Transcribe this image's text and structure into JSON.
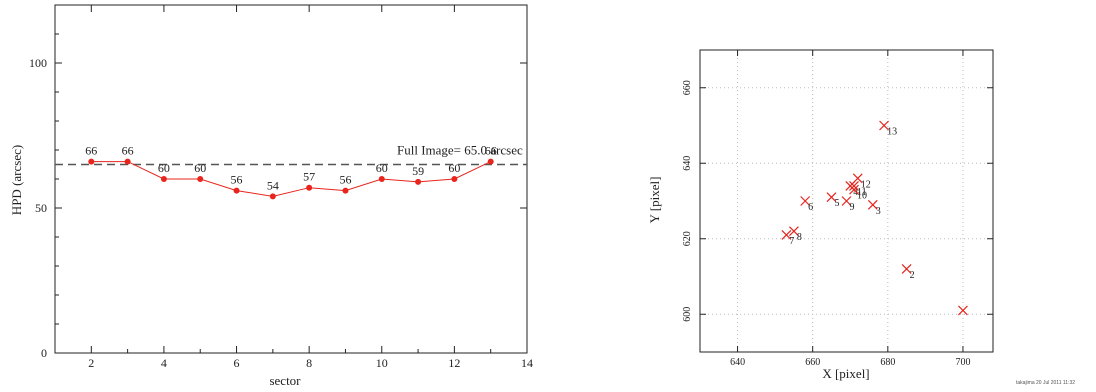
{
  "chart_data": [
    {
      "type": "line",
      "title": "",
      "xlabel": "sector",
      "ylabel": "HPD (arcsec)",
      "xlim": [
        1,
        14
      ],
      "ylim": [
        0,
        120
      ],
      "xticks": [
        "2",
        "4",
        "6",
        "8",
        "10",
        "12",
        "14"
      ],
      "yticks": [
        "0",
        "50",
        "100"
      ],
      "grid": false,
      "series": [
        {
          "color": "#e8241c",
          "x": [
            2,
            3,
            4,
            5,
            6,
            7,
            8,
            9,
            10,
            11,
            12,
            13
          ],
          "values": [
            66,
            66,
            60,
            60,
            56,
            54,
            57,
            56,
            60,
            59,
            60,
            66
          ],
          "labels": [
            "66",
            "66",
            "60",
            "60",
            "56",
            "54",
            "57",
            "56",
            "60",
            "59",
            "60",
            "66"
          ]
        }
      ],
      "reference_line": {
        "value": 65.0,
        "style": "dashed",
        "color": "#555555",
        "label": "Full Image= 65.0 arcsec"
      }
    },
    {
      "type": "scatter",
      "title": "",
      "xlabel": "X [pixel]",
      "ylabel": "Y [pixel]",
      "xlim": [
        630,
        708
      ],
      "ylim": [
        590,
        670
      ],
      "xticks": [
        "640",
        "660",
        "680",
        "700"
      ],
      "yticks": [
        "600",
        "620",
        "640",
        "660"
      ],
      "grid": true,
      "marker": "x",
      "color": "#e8241c",
      "points": [
        {
          "label": "2",
          "x": 685,
          "y": 612
        },
        {
          "label": "3",
          "x": 676,
          "y": 629
        },
        {
          "label": "4",
          "x": 670,
          "y": 634
        },
        {
          "label": "5",
          "x": 665,
          "y": 631
        },
        {
          "label": "6",
          "x": 658,
          "y": 630
        },
        {
          "label": "7",
          "x": 653,
          "y": 621
        },
        {
          "label": "8",
          "x": 655,
          "y": 622
        },
        {
          "label": "9",
          "x": 669,
          "y": 630
        },
        {
          "label": "10",
          "x": 671,
          "y": 633
        },
        {
          "label": "11",
          "x": 671,
          "y": 634
        },
        {
          "label": "12",
          "x": 672,
          "y": 636
        },
        {
          "label": "13",
          "x": 679,
          "y": 650
        },
        {
          "label": "",
          "x": 700,
          "y": 601
        }
      ]
    }
  ],
  "footer": {
    "credit": "takajima 20 Jul 2011 11:32"
  }
}
